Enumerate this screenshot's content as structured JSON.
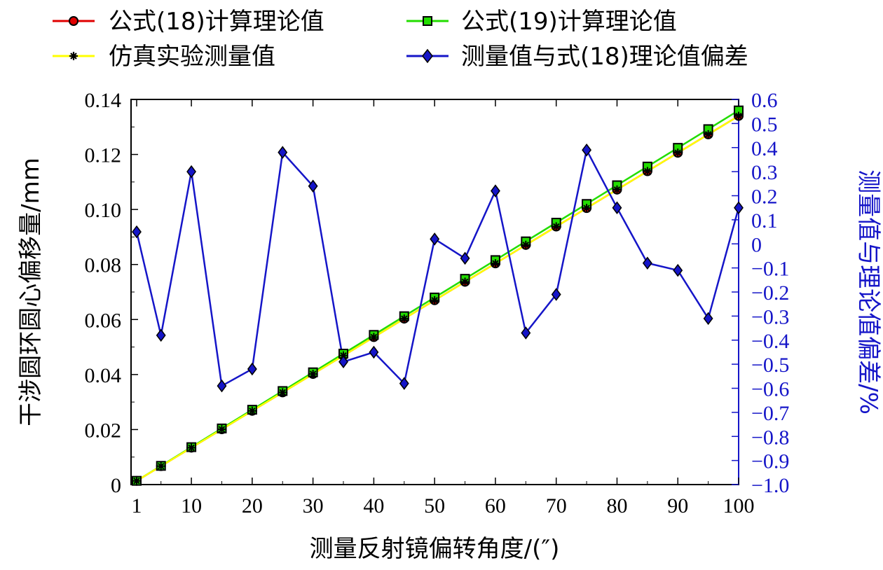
{
  "chart_data": {
    "type": "line",
    "x": [
      1,
      5,
      10,
      15,
      20,
      25,
      30,
      35,
      40,
      45,
      50,
      55,
      60,
      65,
      70,
      75,
      80,
      85,
      90,
      95,
      100
    ],
    "xticks": [
      1,
      10,
      20,
      30,
      40,
      50,
      60,
      70,
      80,
      90,
      100
    ],
    "xlim": [
      0,
      100
    ],
    "xlabel": "测量反射镜偏转角度/(″)",
    "ylabel_left": "干涉圆环圆心偏移量/mm",
    "ylabel_right": "测量值与理论值偏差/%",
    "ylim_left": [
      0,
      0.14
    ],
    "ylim_right": [
      -1.0,
      0.6
    ],
    "yticks_left": [
      "0",
      "0.02",
      "0.04",
      "0.06",
      "0.08",
      "0.10",
      "0.12",
      "0.14"
    ],
    "yticks_right": [
      "−1.0",
      "−0.9",
      "−0.8",
      "−0.7",
      "−0.6",
      "−0.5",
      "−0.4",
      "−0.3",
      "−0.2",
      "−0.1",
      "0",
      "0.1",
      "0.2",
      "0.3",
      "0.4",
      "0.5",
      "0.6"
    ],
    "series": [
      {
        "name": "公式(18)计算理论值",
        "axis": "left",
        "color": "#e00000",
        "marker": "circle",
        "values": [
          0.00134,
          0.0067,
          0.0134,
          0.0201,
          0.0268,
          0.0335,
          0.0402,
          0.0469,
          0.0536,
          0.0603,
          0.067,
          0.0737,
          0.0804,
          0.0871,
          0.0938,
          0.1005,
          0.1072,
          0.1139,
          0.1206,
          0.1273,
          0.134
        ]
      },
      {
        "name": "公式(19)计算理论值",
        "axis": "left",
        "color": "#22dd00",
        "marker": "square",
        "values": [
          0.00136,
          0.0068,
          0.0136,
          0.0204,
          0.0272,
          0.034,
          0.0408,
          0.0476,
          0.0544,
          0.0612,
          0.068,
          0.0748,
          0.0816,
          0.0884,
          0.0952,
          0.102,
          0.1088,
          0.1156,
          0.1224,
          0.1292,
          0.136
        ]
      },
      {
        "name": "仿真实验测量值",
        "axis": "left",
        "color": "#ffff00",
        "marker": "star",
        "values": [
          0.00134,
          0.0067,
          0.0134,
          0.0201,
          0.0268,
          0.0335,
          0.0402,
          0.0469,
          0.0536,
          0.0603,
          0.067,
          0.0737,
          0.0804,
          0.0871,
          0.0938,
          0.1005,
          0.1072,
          0.1139,
          0.1206,
          0.1273,
          0.134
        ]
      },
      {
        "name": "测量值与式(18)理论值偏差",
        "axis": "right",
        "color": "#1515c8",
        "marker": "diamond",
        "values": [
          0.05,
          -0.38,
          0.3,
          -0.59,
          -0.52,
          0.38,
          0.24,
          -0.49,
          -0.45,
          -0.58,
          0.02,
          -0.06,
          0.22,
          -0.37,
          -0.21,
          0.39,
          0.15,
          -0.08,
          -0.11,
          -0.31,
          0.15
        ]
      }
    ],
    "legend": {
      "placement": "top",
      "entries": [
        "公式(18)计算理论值",
        "公式(19)计算理论值",
        "仿真实验测量值",
        "测量值与式(18)理论值偏差"
      ]
    }
  },
  "colors": {
    "right_axis": "#1515c8",
    "left_axis": "#000000"
  }
}
